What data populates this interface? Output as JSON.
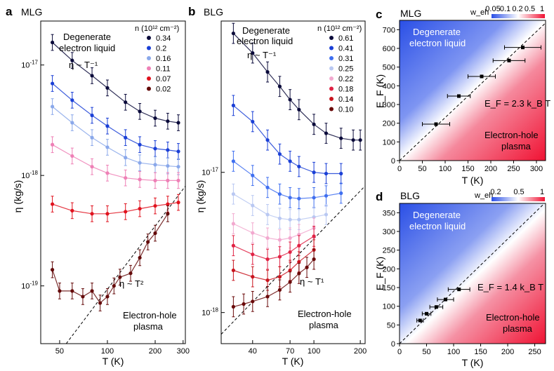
{
  "panels": {
    "a": {
      "letter": "a",
      "title": "MLG"
    },
    "b": {
      "letter": "b",
      "title": "BLG"
    },
    "c": {
      "letter": "c",
      "title": "MLG"
    },
    "d": {
      "letter": "d",
      "title": "BLG"
    }
  },
  "labels": {
    "degenerate_1": "Degenerate",
    "degenerate_2": "electron liquid",
    "eta_t_inv": "η ~ T⁻¹",
    "eta_t_sq": "η ~ T²",
    "eta_t_one": "η ~ T¹",
    "eh_plasma_1": "Electron-hole",
    "eh_plasma_2": "plasma",
    "eta_axis": "η (kg/s)",
    "t_axis": "T (K)",
    "ef_axis": "E_F (K)",
    "legend_title": "n (10¹² cm⁻²)",
    "weh_label": "w_eh",
    "ef_mlg": "E_F = 2.3 k_B T",
    "ef_blg": "E_F = 1.4 k_B T"
  },
  "colors": {
    "mlg": [
      "#0a0a3a",
      "#1a3fd6",
      "#8aa8ea",
      "#ee80b6",
      "#e0121e",
      "#640a0a"
    ],
    "blg": [
      "#0a0a3a",
      "#1a3fd6",
      "#3f6ff0",
      "#b9c8f2",
      "#f2a9cf",
      "#e02244",
      "#c8141e",
      "#6a0a0a"
    ],
    "blue": "#2a4fe6",
    "red": "#f01233"
  },
  "chart_data": [
    {
      "type": "scatter",
      "panel": "a",
      "title": "MLG",
      "xlabel": "T (K)",
      "ylabel": "η (kg/s)",
      "xscale": "log",
      "yscale": "log",
      "xlim": [
        38,
        310
      ],
      "ylim": [
        3e-20,
        2.5e-17
      ],
      "xticks": [
        50,
        100,
        200,
        300
      ],
      "yticks": [
        "10^-19",
        "10^-18",
        "10^-17"
      ],
      "legend_title": "n (10^12 cm^-2)",
      "series": [
        {
          "name": "0.34",
          "x": [
            45,
            60,
            80,
            100,
            130,
            160,
            200,
            240,
            280
          ],
          "y": [
            1.6e-17,
            1.1e-17,
            8e-18,
            6.2e-18,
            4.6e-18,
            3.8e-18,
            3.3e-18,
            3.1e-18,
            3e-18
          ]
        },
        {
          "name": "0.2",
          "x": [
            45,
            60,
            80,
            100,
            130,
            160,
            200,
            240,
            280
          ],
          "y": [
            6.8e-18,
            4.8e-18,
            3.5e-18,
            2.8e-18,
            2.2e-18,
            1.9e-18,
            1.75e-18,
            1.7e-18,
            1.65e-18
          ]
        },
        {
          "name": "0.16",
          "x": [
            45,
            60,
            80,
            100,
            130,
            160,
            200,
            240,
            280
          ],
          "y": [
            4.2e-18,
            3e-18,
            2.2e-18,
            1.8e-18,
            1.45e-18,
            1.3e-18,
            1.25e-18,
            1.22e-18,
            1.2e-18
          ]
        },
        {
          "name": "0.11",
          "x": [
            45,
            60,
            80,
            100,
            130,
            160,
            200,
            240,
            280
          ],
          "y": [
            1.9e-18,
            1.5e-18,
            1.2e-18,
            1.05e-18,
            9.5e-19,
            9.2e-19,
            9e-19,
            9e-19,
            9e-19
          ]
        },
        {
          "name": "0.07",
          "x": [
            45,
            60,
            80,
            100,
            130,
            160,
            200,
            240,
            280
          ],
          "y": [
            5.5e-19,
            4.8e-19,
            4.5e-19,
            4.5e-19,
            4.7e-19,
            5e-19,
            5.3e-19,
            5.5e-19,
            5.7e-19
          ]
        },
        {
          "name": "0.02",
          "x": [
            45,
            50,
            60,
            70,
            80,
            90,
            100,
            110,
            120,
            140,
            160,
            180,
            200,
            240
          ],
          "y": [
            1.4e-19,
            9e-20,
            9e-20,
            8e-20,
            9e-20,
            7e-20,
            8e-20,
            1e-19,
            1.2e-19,
            1.3e-19,
            1.8e-19,
            2.5e-19,
            3e-19,
            4.5e-19
          ]
        }
      ],
      "annotations": [
        "Degenerate electron liquid",
        "η ~ T^-1",
        "η ~ T^2",
        "Electron-hole plasma"
      ]
    },
    {
      "type": "scatter",
      "panel": "b",
      "title": "BLG",
      "xlabel": "T (K)",
      "ylabel": "η (kg/s)",
      "xscale": "log",
      "yscale": "log",
      "xlim": [
        25,
        215
      ],
      "ylim": [
        6e-19,
        1.2e-16
      ],
      "xticks": [
        40,
        70,
        100,
        200
      ],
      "yticks": [
        "10^-18",
        "10^-17"
      ],
      "legend_title": "n (10^12 cm^-2)",
      "series": [
        {
          "name": "0.61",
          "x": [
            30,
            40,
            50,
            60,
            70,
            80,
            100,
            120,
            150,
            180,
            200
          ],
          "y": [
            9.8e-17,
            7.1e-17,
            5.2e-17,
            4.1e-17,
            3.3e-17,
            2.8e-17,
            2.2e-17,
            1.9e-17,
            1.75e-17,
            1.7e-17,
            1.7e-17
          ]
        },
        {
          "name": "0.41",
          "x": [
            30,
            40,
            50,
            60,
            70,
            80,
            100,
            120,
            150
          ],
          "y": [
            3e-17,
            2.3e-17,
            1.7e-17,
            1.35e-17,
            1.2e-17,
            1.1e-17,
            1e-17,
            9.8e-18,
            9.8e-18
          ]
        },
        {
          "name": "0.31",
          "x": [
            30,
            40,
            50,
            60,
            70,
            80,
            100,
            120,
            150
          ],
          "y": [
            1.2e-17,
            9.5e-18,
            7.8e-18,
            7e-18,
            6.6e-18,
            6.5e-18,
            6.6e-18,
            6.8e-18,
            7.1e-18
          ]
        },
        {
          "name": "0.25",
          "x": [
            30,
            40,
            50,
            60,
            70,
            80,
            100,
            120
          ],
          "y": [
            7e-18,
            5.8e-18,
            5e-18,
            4.7e-18,
            4.6e-18,
            4.6e-18,
            4.8e-18,
            5e-18
          ]
        },
        {
          "name": "0.22",
          "x": [
            30,
            40,
            50,
            60,
            70,
            80,
            100
          ],
          "y": [
            4.3e-18,
            3.7e-18,
            3.4e-18,
            3.3e-18,
            3.4e-18,
            3.6e-18,
            4e-18
          ]
        },
        {
          "name": "0.18",
          "x": [
            30,
            40,
            50,
            60,
            70,
            80,
            100
          ],
          "y": [
            3e-18,
            2.6e-18,
            2.4e-18,
            2.5e-18,
            2.7e-18,
            3e-18,
            3.5e-18
          ]
        },
        {
          "name": "0.14",
          "x": [
            30,
            40,
            50,
            60,
            70,
            80,
            100
          ],
          "y": [
            2e-18,
            1.8e-18,
            1.7e-18,
            1.8e-18,
            2e-18,
            2.3e-18,
            2.8e-18
          ]
        },
        {
          "name": "0.10",
          "x": [
            30,
            35,
            40,
            50,
            60,
            70,
            80,
            90,
            100
          ],
          "y": [
            1.1e-18,
            1.15e-18,
            1.2e-18,
            1.3e-18,
            1.45e-18,
            1.65e-18,
            1.9e-18,
            2.1e-18,
            2.4e-18
          ]
        }
      ],
      "annotations": [
        "Degenerate electron liquid",
        "η ~ T^-1",
        "η ~ T^1",
        "Electron-hole plasma"
      ]
    },
    {
      "type": "heatmap",
      "panel": "c",
      "title": "MLG",
      "xlabel": "T (K)",
      "ylabel": "E_F (K)",
      "xlim": [
        0,
        320
      ],
      "ylim": [
        0,
        750
      ],
      "xticks": [
        0,
        50,
        100,
        150,
        200,
        250,
        300
      ],
      "yticks": [
        0,
        100,
        200,
        300,
        400,
        500,
        600,
        700
      ],
      "colorbar": {
        "label": "w_eh",
        "ticks": [
          "0.05",
          "0.1",
          "0.2",
          "0.5",
          "1"
        ]
      },
      "points": [
        {
          "x": 80,
          "y": 195,
          "xerr": 30
        },
        {
          "x": 130,
          "y": 345,
          "xerr": 25
        },
        {
          "x": 180,
          "y": 450,
          "xerr": 30
        },
        {
          "x": 240,
          "y": 535,
          "xerr": 35
        },
        {
          "x": 270,
          "y": 605,
          "xerr": 40
        }
      ],
      "line": {
        "slope": 2.3,
        "label": "E_F = 2.3 k_B T"
      },
      "annotations": [
        "Degenerate electron liquid",
        "Electron-hole plasma"
      ]
    },
    {
      "type": "heatmap",
      "panel": "d",
      "title": "BLG",
      "xlabel": "T (K)",
      "ylabel": "E_F (K)",
      "xlim": [
        0,
        270
      ],
      "ylim": [
        0,
        375
      ],
      "xticks": [
        0,
        50,
        100,
        150,
        200,
        250
      ],
      "yticks": [
        0,
        50,
        100,
        150,
        200,
        250,
        300,
        350
      ],
      "colorbar": {
        "label": "w_eh",
        "ticks": [
          "0.2",
          "0.5",
          "1"
        ]
      },
      "points": [
        {
          "x": 38,
          "y": 62,
          "xerr": 6
        },
        {
          "x": 50,
          "y": 80,
          "xerr": 8
        },
        {
          "x": 68,
          "y": 98,
          "xerr": 12
        },
        {
          "x": 85,
          "y": 118,
          "xerr": 15
        },
        {
          "x": 110,
          "y": 145,
          "xerr": 20
        }
      ],
      "line": {
        "slope": 1.4,
        "label": "E_F = 1.4 k_B T"
      },
      "annotations": [
        "Degenerate electron liquid",
        "Electron-hole plasma"
      ]
    }
  ]
}
